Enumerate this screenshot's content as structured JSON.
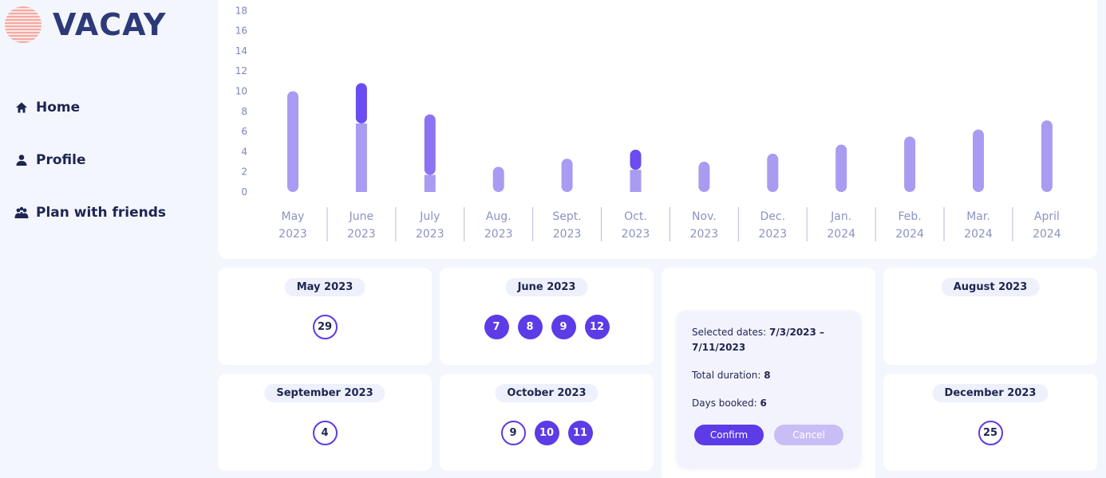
{
  "app": {
    "name": "VACAY"
  },
  "nav": {
    "items": [
      {
        "label": "Home",
        "icon": "home-icon"
      },
      {
        "label": "Profile",
        "icon": "person-icon"
      },
      {
        "label": "Plan with friends",
        "icon": "group-icon"
      }
    ]
  },
  "colors": {
    "accent": "#5d3be6",
    "bar_base": "#a99bf1",
    "bar_booked": "#6a4cf0",
    "bar_mid": "#8d72f3"
  },
  "chart_data": {
    "type": "bar",
    "ylim": [
      0,
      18
    ],
    "yticks": [
      0,
      2,
      4,
      6,
      8,
      10,
      12,
      14,
      16,
      18
    ],
    "categories": [
      [
        "May",
        "2023"
      ],
      [
        "June",
        "2023"
      ],
      [
        "July",
        "2023"
      ],
      [
        "Aug.",
        "2023"
      ],
      [
        "Sept.",
        "2023"
      ],
      [
        "Oct.",
        "2023"
      ],
      [
        "Nov.",
        "2023"
      ],
      [
        "Dec.",
        "2023"
      ],
      [
        "Jan.",
        "2024"
      ],
      [
        "Feb.",
        "2024"
      ],
      [
        "Mar.",
        "2024"
      ],
      [
        "April",
        "2024"
      ]
    ],
    "series": [
      {
        "values": [
          10,
          6.8,
          1.7,
          2.5,
          3.3,
          2.2,
          3.0,
          3.8,
          4.7,
          5.5,
          6.2,
          7.1
        ]
      },
      {
        "values": [
          0,
          4.0,
          6.0,
          0,
          0,
          2.0,
          0,
          0,
          0,
          0,
          0,
          0
        ]
      }
    ]
  },
  "calendar": {
    "months": [
      {
        "title": "May 2023",
        "days": [
          {
            "n": "29",
            "style": "outline"
          }
        ]
      },
      {
        "title": "June 2023",
        "days": [
          {
            "n": "7",
            "style": "filled"
          },
          {
            "n": "8",
            "style": "filled"
          },
          {
            "n": "9",
            "style": "filled"
          },
          {
            "n": "12",
            "style": "filled"
          }
        ]
      },
      {
        "title": "August 2023",
        "days": []
      },
      {
        "title": "September 2023",
        "days": [
          {
            "n": "4",
            "style": "outline"
          }
        ]
      },
      {
        "title": "October 2023",
        "days": [
          {
            "n": "9",
            "style": "outline"
          },
          {
            "n": "10",
            "style": "filled"
          },
          {
            "n": "11",
            "style": "filled"
          }
        ]
      },
      {
        "title": "December 2023",
        "days": [
          {
            "n": "25",
            "style": "outline"
          }
        ]
      }
    ]
  },
  "selection": {
    "selected_label": "Selected dates:",
    "selected_value_line1": "7/3/2023 –",
    "selected_value_line2": "7/11/2023",
    "duration_label": "Total duration:",
    "duration_value": "8",
    "booked_label": "Days booked:",
    "booked_value": "6",
    "confirm_label": "Confirm",
    "cancel_label": "Cancel"
  }
}
